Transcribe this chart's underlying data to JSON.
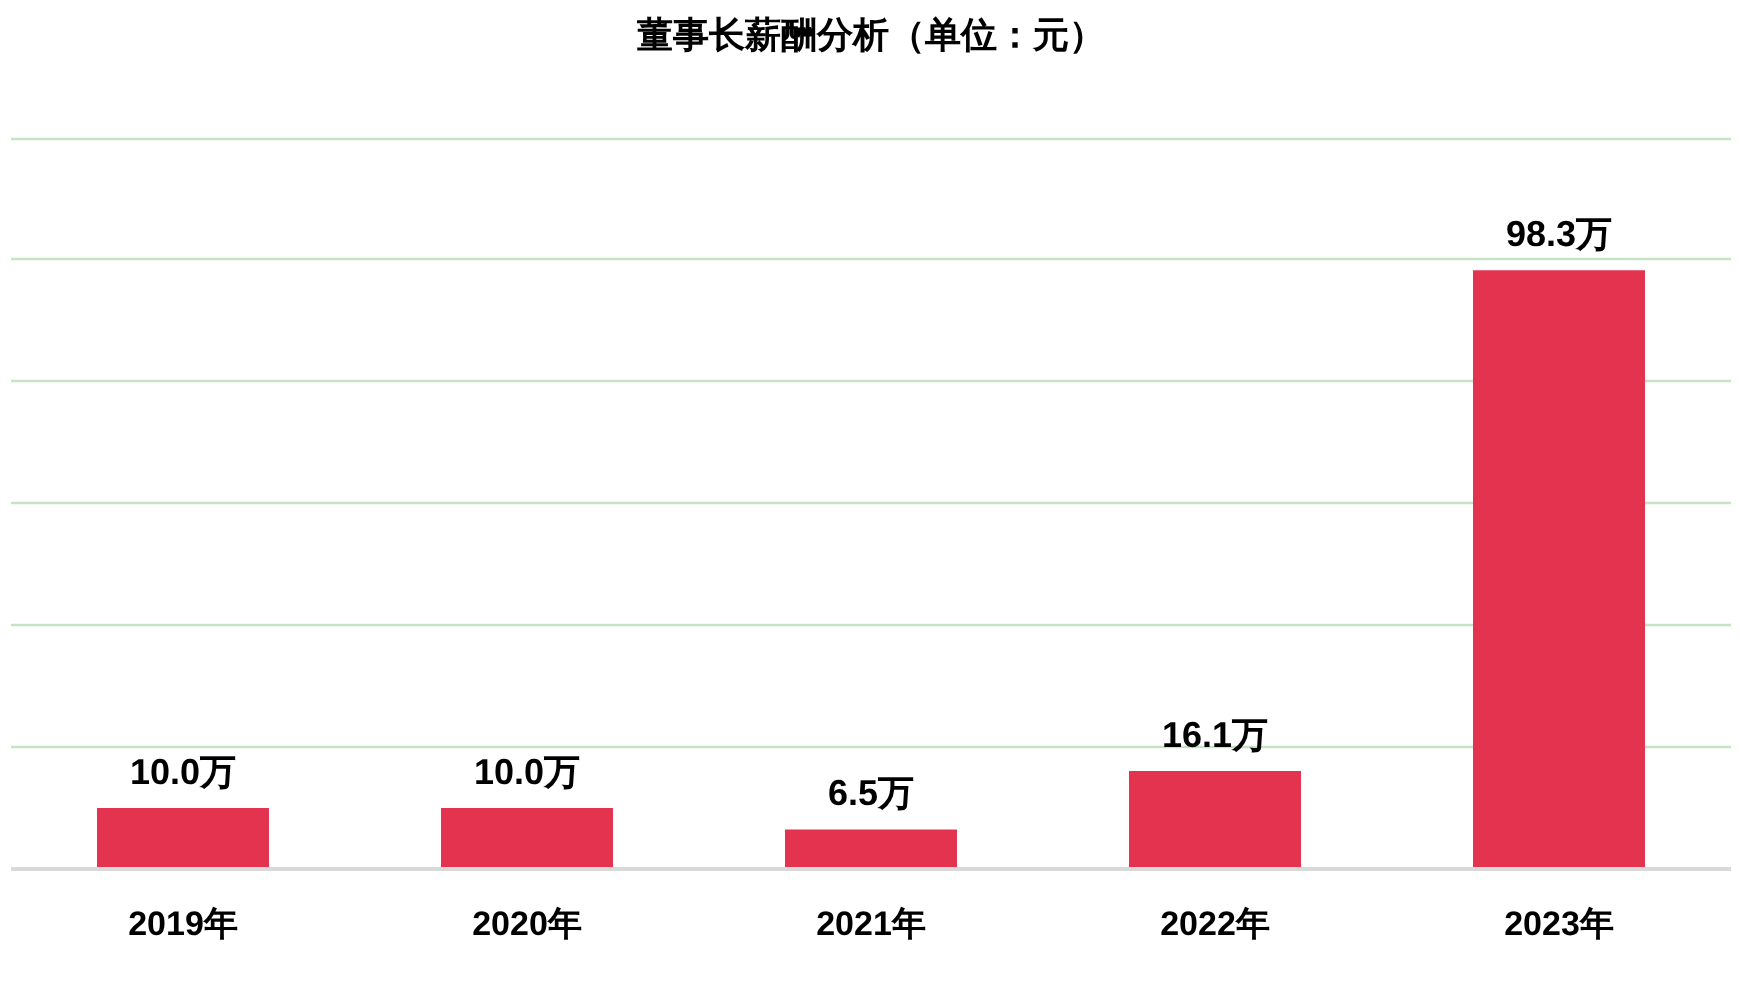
{
  "chart_data": {
    "type": "bar",
    "title": "董事长薪酬分析（单位：元）",
    "categories": [
      "2019年",
      "2020年",
      "2021年",
      "2022年",
      "2023年"
    ],
    "values": [
      10.0,
      10.0,
      6.5,
      16.1,
      98.3
    ],
    "value_labels": [
      "10.0万",
      "10.0万",
      "6.5万",
      "16.1万",
      "98.3万"
    ],
    "color": "#e3334f",
    "yticks": [
      {
        "value": 0,
        "label": null
      },
      {
        "value": 20,
        "label": null
      },
      {
        "value": 40,
        "label": null
      },
      {
        "value": 60,
        "label": null
      },
      {
        "value": 80,
        "label": null
      },
      {
        "value": 100,
        "label": null
      },
      {
        "value": 120,
        "label": null
      }
    ],
    "grid": "y",
    "tick_labels": "x"
  }
}
